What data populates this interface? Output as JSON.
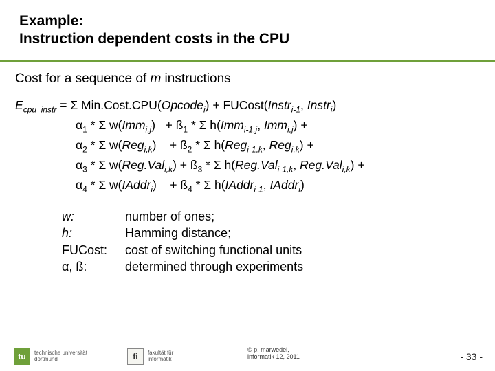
{
  "title": {
    "line1": "Example:",
    "line2": "Instruction dependent costs in the CPU"
  },
  "intro": {
    "prefix": "Cost for a sequence of ",
    "m": "m",
    "suffix": " instructions"
  },
  "formula": {
    "lhs_E": "E",
    "lhs_sub": "cpu_instr",
    "eq": " = Σ Min.Cost.CPU(",
    "opcode": "Opcode",
    "i": "i",
    "close_plus_fu": ") + FUCost(",
    "instr": "Instr",
    "im1": "i-1",
    "comma": ", ",
    "instr2": "Instr",
    "i2": "i",
    "close": ")",
    "row1_a": "α",
    "row1_a_sub": "1",
    "row1_mid": " * Σ w(",
    "imm": "Imm",
    "ij": "i,j",
    "row1_close": ")",
    "row1_plus": "   + ß",
    "row1_b_sub": "1",
    "row1_h": " * Σ h(",
    "imm2": "Imm",
    "im1j": "i-1,j",
    "comma2": ", ",
    "imm3": "Imm",
    "ij2": "i,j",
    "row1_end": ") +",
    "row2_a": "α",
    "row2_a_sub": "2",
    "row2_mid": " * Σ w(",
    "reg": "Reg",
    "ik": "i,k",
    "row2_close": ")",
    "row2_plus": "    + ß",
    "row2_b_sub": "2",
    "row2_h": " * Σ h(",
    "reg2": "Reg",
    "im1k": "i-1,k",
    "comma3": ", ",
    "reg3": "Reg",
    "ik2": "i,k",
    "row2_end": ") +",
    "row3_a": "α",
    "row3_a_sub": "3",
    "row3_mid": " * Σ w(",
    "regval": "Reg.Val",
    "ik3": "i,k",
    "row3_close": ") + ß",
    "row3_b_sub": "3",
    "row3_h": " * Σ h(",
    "regval2": "Reg.Val",
    "im1k2": "i-1,k",
    "comma4": ", ",
    "regval3": "Reg.Val",
    "ik4": "i,k",
    "row3_end": ") +",
    "row4_a": "α",
    "row4_a_sub": "4",
    "row4_mid": " * Σ w(",
    "iaddr": "IAddr",
    "i4": "i",
    "row4_close": ")",
    "row4_plus": "    + ß",
    "row4_b_sub": "4",
    "row4_h": " * Σ h(",
    "iaddr2": "IAddr",
    "im12": "i-1",
    "comma5": ", ",
    "iaddr3": "IAddr",
    "i5": "i",
    "row4_end": ")"
  },
  "legend": {
    "w_term": "w:",
    "w_def": "number of ones;",
    "h_term": "h:",
    "h_def": "Hamming distance;",
    "fu_term": "FUCost:",
    "fu_def": "cost of switching functional units",
    "ab_term": "α, ß:",
    "ab_def": "determined through experiments"
  },
  "footer": {
    "tu_mark": "tu",
    "tu_line1": "technische universität",
    "tu_line2": "dortmund",
    "fi_mark": "fi",
    "fi_line1": "fakultät für",
    "fi_line2": "informatik",
    "copyright1": "© p. marwedel,",
    "copyright2": "informatik 12, 2011",
    "pagenum": "-  33 -"
  },
  "colors": {
    "accent_green": "#6fa03a",
    "rule_gray": "#bfbfbf"
  }
}
